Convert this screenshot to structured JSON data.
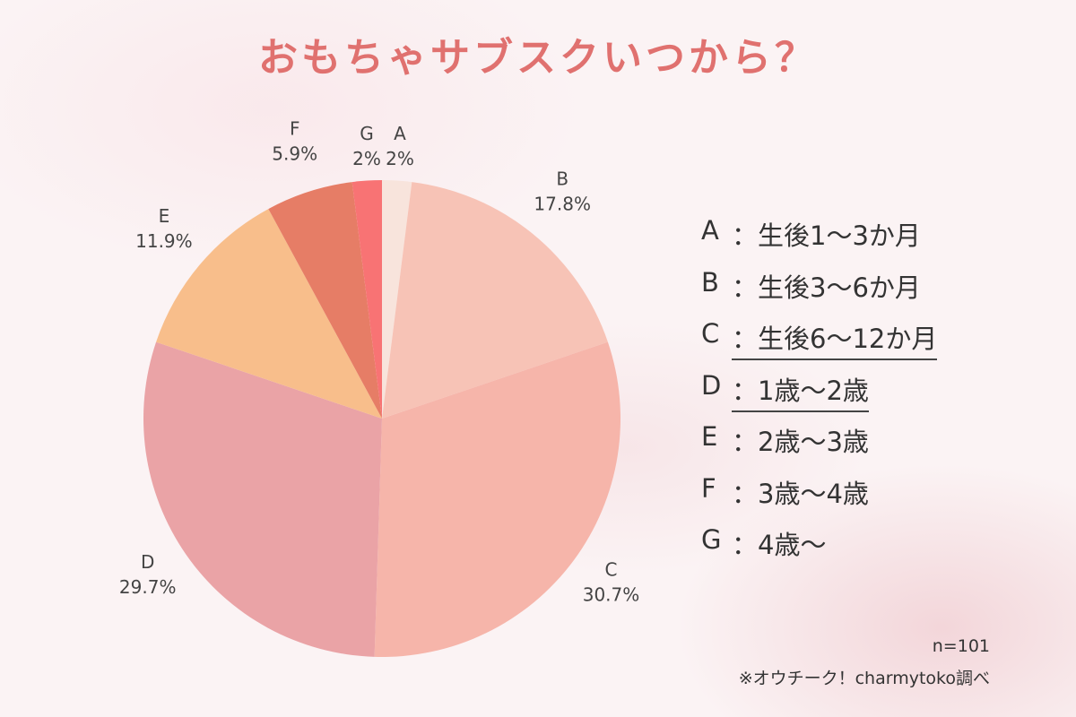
{
  "title": "おもちゃサブスクいつから？",
  "chart_data": {
    "type": "pie",
    "start_angle_deg": 0,
    "direction": "clockwise",
    "slices": [
      {
        "label": "A",
        "value": 2,
        "value_label": "2%",
        "color": "#f8e4dc"
      },
      {
        "label": "B",
        "value": 17.8,
        "value_label": "17.8%",
        "color": "#f7c3b6"
      },
      {
        "label": "C",
        "value": 30.7,
        "value_label": "30.7%",
        "color": "#f6b5aa"
      },
      {
        "label": "D",
        "value": 29.7,
        "value_label": "29.7%",
        "color": "#eaa3a6"
      },
      {
        "label": "E",
        "value": 11.9,
        "value_label": "11.9%",
        "color": "#f8be8b"
      },
      {
        "label": "F",
        "value": 5.9,
        "value_label": "5.9%",
        "color": "#e67d66"
      },
      {
        "label": "G",
        "value": 2,
        "value_label": "2%",
        "color": "#f87374"
      }
    ]
  },
  "legend": [
    {
      "key": "A",
      "text": "：生後1～3か月",
      "underlined": false
    },
    {
      "key": "B",
      "text": "：生後3～6か月",
      "underlined": false
    },
    {
      "key": "C",
      "text": "：生後6～12か月",
      "underlined": true
    },
    {
      "key": "D",
      "text": "：1歳～2歳",
      "underlined": true
    },
    {
      "key": "E",
      "text": "：2歳～3歳",
      "underlined": false
    },
    {
      "key": "F",
      "text": "：3歳～4歳",
      "underlined": false
    },
    {
      "key": "G",
      "text": "：4歳～",
      "underlined": false
    }
  ],
  "sample_size": "n=101",
  "source": "※オウチーク！charmytoko調べ"
}
